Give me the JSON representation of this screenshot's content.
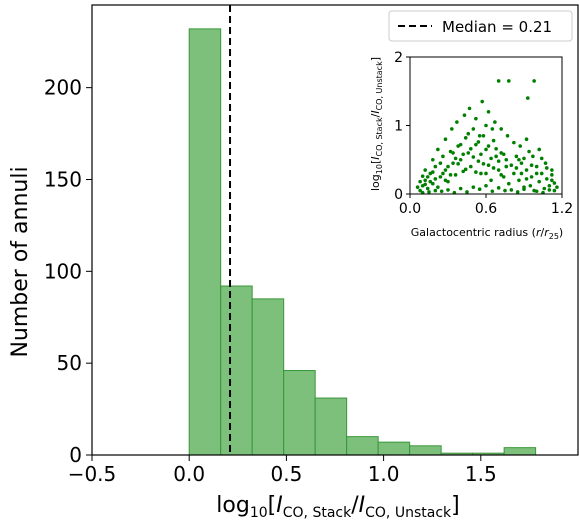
{
  "chart_data": [
    {
      "type": "bar",
      "subtype": "histogram",
      "xlabel_parts": {
        "pre": "log",
        "sub10": "10",
        "open": "[",
        "I1": "I",
        "sub1": "CO, Stack",
        "slash": "/",
        "I2": "I",
        "sub2": "CO, Unstack",
        "close": "]"
      },
      "ylabel": "Number of annuli",
      "xlim": [
        -0.5,
        2.0
      ],
      "ylim": [
        0,
        245
      ],
      "xticks": [
        -0.5,
        0.0,
        0.5,
        1.0,
        1.5
      ],
      "xtick_labels": [
        "−0.5",
        "0.0",
        "0.5",
        "1.0",
        "1.5"
      ],
      "yticks": [
        0,
        50,
        100,
        150,
        200
      ],
      "ytick_labels": [
        "0",
        "50",
        "100",
        "150",
        "200"
      ],
      "bin_edges": [
        0.0,
        0.162,
        0.324,
        0.486,
        0.648,
        0.81,
        0.972,
        1.134,
        1.296,
        1.458,
        1.62,
        1.782,
        1.944
      ],
      "counts": [
        232,
        92,
        85,
        46,
        31,
        10,
        7,
        5,
        1,
        1,
        4,
        0
      ],
      "bar_color": "#7cc07c",
      "bar_edge_color": "#3a963a",
      "median_line": {
        "value": 0.21,
        "label": "Median = 0.21",
        "style": "dashed",
        "color": "#000000"
      },
      "legend_position": "top-right"
    },
    {
      "type": "scatter",
      "xlabel": "Galactocentric radius (r/r25)",
      "xlabel_parts": {
        "pre": "Galactocentric radius (",
        "r": "r",
        "slash": "/",
        "r2": "r",
        "sub": "25",
        "close": ")"
      },
      "ylabel_parts": {
        "pre": "log",
        "sub10": "10",
        "open": "[",
        "I1": "I",
        "sub1": "CO, Stack",
        "slash": "/",
        "I2": "I",
        "sub2": "CO, Unstack",
        "close": "]"
      },
      "xlim": [
        0.0,
        1.2
      ],
      "ylim": [
        0.0,
        2.0
      ],
      "xticks": [
        0.0,
        0.6,
        1.2
      ],
      "xtick_labels": [
        "0.0",
        "0.6",
        "1.2"
      ],
      "yticks": [
        0,
        1,
        2
      ],
      "ytick_labels": [
        "0",
        "1",
        "2"
      ],
      "marker_color": "#008000",
      "points": [
        [
          0.08,
          0.05
        ],
        [
          0.1,
          0.12
        ],
        [
          0.12,
          0.2
        ],
        [
          0.14,
          0.08
        ],
        [
          0.16,
          0.3
        ],
        [
          0.18,
          0.15
        ],
        [
          0.2,
          0.4
        ],
        [
          0.22,
          0.1
        ],
        [
          0.24,
          0.25
        ],
        [
          0.26,
          0.55
        ],
        [
          0.28,
          0.35
        ],
        [
          0.3,
          0.18
        ],
        [
          0.32,
          0.62
        ],
        [
          0.34,
          0.45
        ],
        [
          0.36,
          0.28
        ],
        [
          0.38,
          0.7
        ],
        [
          0.4,
          0.5
        ],
        [
          0.42,
          0.33
        ],
        [
          0.44,
          0.82
        ],
        [
          0.46,
          0.6
        ],
        [
          0.48,
          0.4
        ],
        [
          0.5,
          0.95
        ],
        [
          0.52,
          0.72
        ],
        [
          0.54,
          0.48
        ],
        [
          0.56,
          0.3
        ],
        [
          0.58,
          0.85
        ],
        [
          0.6,
          0.65
        ],
        [
          0.62,
          0.42
        ],
        [
          0.64,
          0.2
        ],
        [
          0.66,
          0.78
        ],
        [
          0.68,
          0.55
        ],
        [
          0.7,
          0.35
        ],
        [
          0.72,
          0.6
        ],
        [
          0.74,
          0.25
        ],
        [
          0.76,
          0.5
        ],
        [
          0.78,
          0.15
        ],
        [
          0.8,
          0.42
        ],
        [
          0.82,
          0.3
        ],
        [
          0.84,
          0.55
        ],
        [
          0.86,
          0.2
        ],
        [
          0.88,
          0.45
        ],
        [
          0.9,
          0.1
        ],
        [
          0.92,
          0.35
        ],
        [
          0.94,
          0.62
        ],
        [
          0.96,
          0.25
        ],
        [
          0.98,
          0.05
        ],
        [
          1.0,
          0.4
        ],
        [
          1.02,
          0.18
        ],
        [
          1.04,
          0.3
        ],
        [
          1.06,
          0.08
        ],
        [
          1.08,
          0.22
        ],
        [
          1.1,
          0.12
        ],
        [
          1.12,
          0.35
        ],
        [
          1.14,
          0.05
        ],
        [
          0.1,
          0.02
        ],
        [
          0.15,
          0.03
        ],
        [
          0.2,
          0.05
        ],
        [
          0.25,
          0.04
        ],
        [
          0.3,
          0.06
        ],
        [
          0.35,
          0.02
        ],
        [
          0.4,
          0.08
        ],
        [
          0.45,
          0.03
        ],
        [
          0.5,
          0.1
        ],
        [
          0.55,
          0.07
        ],
        [
          0.6,
          0.12
        ],
        [
          0.65,
          0.04
        ],
        [
          0.7,
          0.09
        ],
        [
          0.75,
          0.05
        ],
        [
          0.8,
          0.06
        ],
        [
          0.85,
          0.03
        ],
        [
          0.9,
          0.07
        ],
        [
          0.95,
          0.12
        ],
        [
          1.0,
          0.04
        ],
        [
          1.05,
          0.02
        ],
        [
          1.1,
          0.06
        ],
        [
          0.12,
          0.35
        ],
        [
          0.18,
          0.5
        ],
        [
          0.22,
          0.65
        ],
        [
          0.28,
          0.8
        ],
        [
          0.33,
          0.95
        ],
        [
          0.37,
          1.05
        ],
        [
          0.43,
          1.15
        ],
        [
          0.47,
          1.25
        ],
        [
          0.52,
          1.1
        ],
        [
          0.57,
          1.35
        ],
        [
          0.62,
          1.2
        ],
        [
          0.67,
          1.05
        ],
        [
          0.72,
          0.95
        ],
        [
          0.77,
          0.85
        ],
        [
          0.82,
          0.75
        ],
        [
          0.87,
          0.7
        ],
        [
          0.92,
          0.8
        ],
        [
          0.97,
          0.55
        ],
        [
          1.02,
          0.65
        ],
        [
          1.07,
          0.45
        ],
        [
          1.12,
          0.28
        ],
        [
          0.7,
          1.65
        ],
        [
          0.78,
          1.65
        ],
        [
          0.98,
          1.65
        ],
        [
          0.93,
          1.4
        ],
        [
          0.6,
          1.0
        ],
        [
          0.55,
          0.85
        ],
        [
          0.65,
          0.95
        ],
        [
          0.3,
          0.4
        ],
        [
          0.32,
          0.28
        ],
        [
          0.34,
          0.6
        ],
        [
          0.36,
          0.52
        ],
        [
          0.38,
          0.44
        ],
        [
          0.4,
          0.72
        ],
        [
          0.42,
          0.58
        ],
        [
          0.44,
          0.36
        ],
        [
          0.46,
          0.88
        ],
        [
          0.48,
          0.66
        ],
        [
          0.5,
          0.54
        ],
        [
          0.52,
          0.32
        ],
        [
          0.54,
          0.76
        ],
        [
          0.56,
          0.58
        ],
        [
          0.58,
          0.44
        ],
        [
          0.6,
          0.3
        ],
        [
          0.62,
          0.7
        ],
        [
          0.64,
          0.52
        ],
        [
          0.66,
          0.38
        ],
        [
          0.68,
          0.66
        ],
        [
          0.7,
          0.48
        ],
        [
          0.72,
          0.28
        ],
        [
          0.74,
          0.58
        ],
        [
          0.76,
          0.4
        ],
        [
          0.16,
          0.18
        ],
        [
          0.14,
          0.25
        ],
        [
          0.12,
          0.14
        ],
        [
          0.18,
          0.32
        ],
        [
          0.2,
          0.22
        ],
        [
          0.24,
          0.45
        ],
        [
          0.26,
          0.3
        ],
        [
          0.28,
          0.2
        ],
        [
          0.08,
          0.18
        ],
        [
          0.06,
          0.1
        ],
        [
          0.1,
          0.26
        ],
        [
          0.84,
          0.38
        ],
        [
          0.86,
          0.5
        ],
        [
          0.88,
          0.3
        ],
        [
          0.9,
          0.52
        ],
        [
          0.92,
          0.22
        ],
        [
          0.96,
          0.42
        ],
        [
          1.0,
          0.3
        ],
        [
          1.04,
          0.52
        ],
        [
          1.08,
          0.38
        ],
        [
          1.12,
          0.2
        ],
        [
          1.14,
          0.16
        ],
        [
          1.16,
          0.1
        ]
      ]
    }
  ]
}
